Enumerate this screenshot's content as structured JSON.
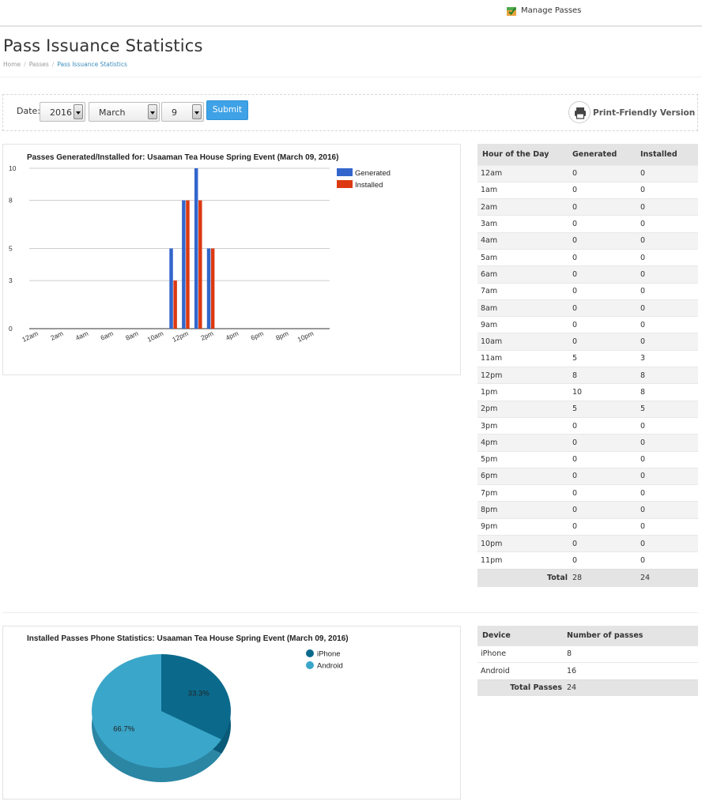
{
  "topnav": {
    "manage_passes": "Manage Passes"
  },
  "page": {
    "title": "Pass Issuance Statistics",
    "breadcrumb": [
      "Home",
      "Passes",
      "Pass Issuance Statistics"
    ]
  },
  "filter": {
    "date_label": "Date:",
    "year": "2016",
    "month": "March",
    "day": "9",
    "submit_label": "Submit",
    "print_label": "Print-Friendly Version"
  },
  "colors": {
    "generated": "#3366cc",
    "installed": "#dc3912",
    "iphone": "#0b6a8c",
    "android": "#3aa6c9",
    "link": "#3c8dbc"
  },
  "hourly_table": {
    "headers": [
      "Hour of the Day",
      "Generated",
      "Installed"
    ],
    "rows": [
      [
        "12am",
        "0",
        "0"
      ],
      [
        "1am",
        "0",
        "0"
      ],
      [
        "2am",
        "0",
        "0"
      ],
      [
        "3am",
        "0",
        "0"
      ],
      [
        "4am",
        "0",
        "0"
      ],
      [
        "5am",
        "0",
        "0"
      ],
      [
        "6am",
        "0",
        "0"
      ],
      [
        "7am",
        "0",
        "0"
      ],
      [
        "8am",
        "0",
        "0"
      ],
      [
        "9am",
        "0",
        "0"
      ],
      [
        "10am",
        "0",
        "0"
      ],
      [
        "11am",
        "5",
        "3"
      ],
      [
        "12pm",
        "8",
        "8"
      ],
      [
        "1pm",
        "10",
        "8"
      ],
      [
        "2pm",
        "5",
        "5"
      ],
      [
        "3pm",
        "0",
        "0"
      ],
      [
        "4pm",
        "0",
        "0"
      ],
      [
        "5pm",
        "0",
        "0"
      ],
      [
        "6pm",
        "0",
        "0"
      ],
      [
        "7pm",
        "0",
        "0"
      ],
      [
        "8pm",
        "0",
        "0"
      ],
      [
        "9pm",
        "0",
        "0"
      ],
      [
        "10pm",
        "0",
        "0"
      ],
      [
        "11pm",
        "0",
        "0"
      ]
    ],
    "total_label": "Total",
    "total_generated": "28",
    "total_installed": "24"
  },
  "device_table": {
    "headers": [
      "Device",
      "Number of passes"
    ],
    "rows": [
      [
        "iPhone",
        "8"
      ],
      [
        "Android",
        "16"
      ]
    ],
    "total_label": "Total Passes",
    "total_value": "24"
  },
  "chart_data": [
    {
      "type": "bar",
      "title": "Passes Generated/Installed for: Usaaman Tea House Spring Event (March 09, 2016)",
      "categories": [
        "12am",
        "1am",
        "2am",
        "3am",
        "4am",
        "5am",
        "6am",
        "7am",
        "8am",
        "9am",
        "10am",
        "11am",
        "12pm",
        "1pm",
        "2pm",
        "3pm",
        "4pm",
        "5pm",
        "6pm",
        "7pm",
        "8pm",
        "9pm",
        "10pm",
        "11pm"
      ],
      "x_tick_labels": [
        "12am",
        "2am",
        "4am",
        "6am",
        "8am",
        "10am",
        "12pm",
        "2pm",
        "4pm",
        "6pm",
        "8pm",
        "10pm"
      ],
      "series": [
        {
          "name": "Generated",
          "values": [
            0,
            0,
            0,
            0,
            0,
            0,
            0,
            0,
            0,
            0,
            0,
            5,
            8,
            10,
            5,
            0,
            0,
            0,
            0,
            0,
            0,
            0,
            0,
            0
          ]
        },
        {
          "name": "Installed",
          "values": [
            0,
            0,
            0,
            0,
            0,
            0,
            0,
            0,
            0,
            0,
            0,
            3,
            8,
            8,
            5,
            0,
            0,
            0,
            0,
            0,
            0,
            0,
            0,
            0
          ]
        }
      ],
      "y_ticks": [
        0,
        3,
        5,
        8,
        10
      ],
      "ylim": [
        0,
        10
      ],
      "grid": true,
      "legend": "right"
    },
    {
      "type": "pie",
      "title": "Installed Passes Phone Statistics: Usaaman Tea House Spring Event (March 09, 2016)",
      "labels": [
        "iPhone",
        "Android"
      ],
      "values": [
        8,
        16
      ],
      "slice_labels": [
        "33.3%",
        "66.7%"
      ],
      "legend": "right"
    }
  ]
}
